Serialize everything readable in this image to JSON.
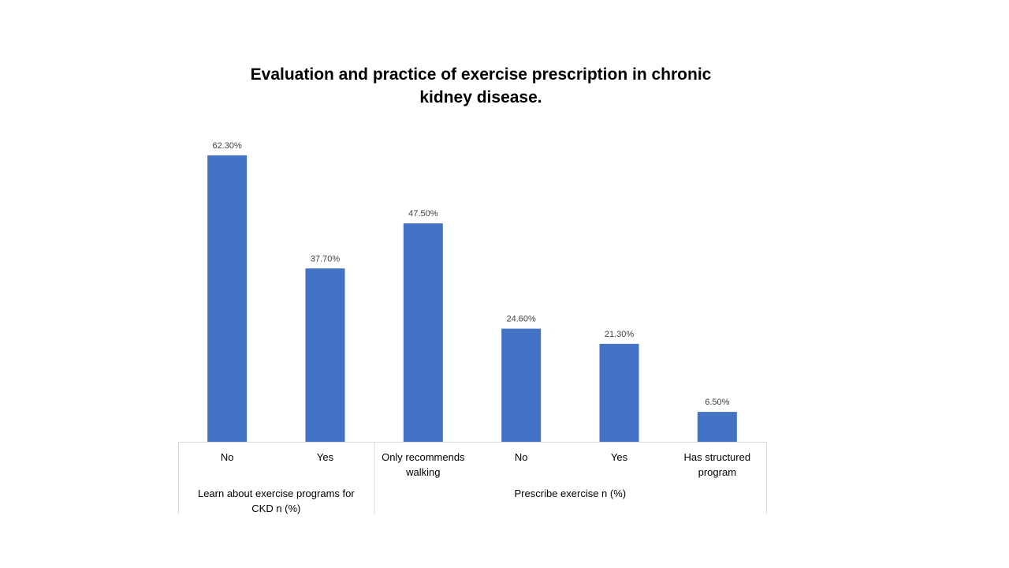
{
  "chart_data": {
    "type": "bar",
    "title": "Evaluation and practice of exercise prescription in chronic kidney disease.",
    "categories": [
      "No",
      "Yes",
      "Only recommends walking",
      "No",
      "Yes",
      "Has structured program"
    ],
    "values": [
      62.3,
      37.7,
      47.5,
      24.6,
      21.3,
      6.5
    ],
    "data_labels": [
      "62.30%",
      "37.70%",
      "47.50%",
      "24.60%",
      "21.30%",
      "6.50%"
    ],
    "groups": [
      {
        "label": "Learn about exercise programs for CKD n (%)",
        "count": 2
      },
      {
        "label": "Prescribe exercise n (%)",
        "count": 4
      }
    ],
    "xlabel": "",
    "ylabel": "",
    "ylim": [
      0,
      70
    ],
    "grid": false,
    "legend": "none",
    "colors": {
      "bar": "#4472C4",
      "axis": "#D9D9D9"
    }
  }
}
